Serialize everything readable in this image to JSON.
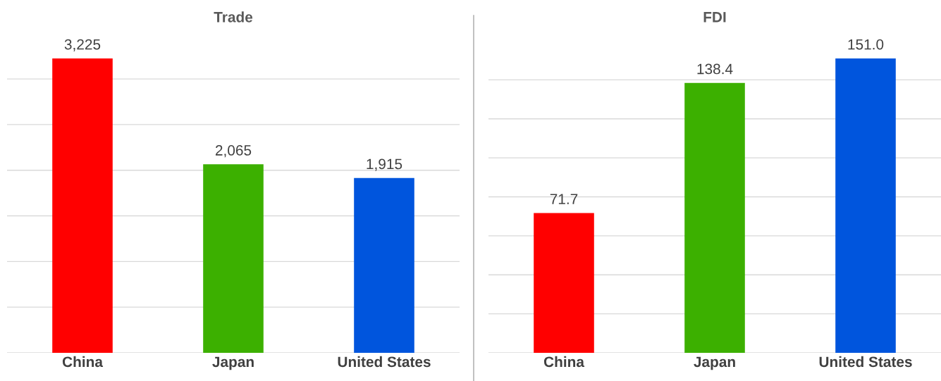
{
  "chart_data": [
    {
      "type": "bar",
      "title": "Trade",
      "categories": [
        "China",
        "Japan",
        "United States"
      ],
      "series": [
        {
          "values": [
            3225,
            2065,
            1915
          ],
          "colors": [
            "#ff0000",
            "#3cb000",
            "#0055dd"
          ],
          "value_labels": [
            "3,225",
            "2,065",
            "1,915"
          ]
        }
      ],
      "grid": "y",
      "tick_labels": "x"
    },
    {
      "type": "bar",
      "title": "FDI",
      "categories": [
        "China",
        "Japan",
        "United States"
      ],
      "series": [
        {
          "values": [
            71.7,
            138.4,
            151.0
          ],
          "colors": [
            "#ff0000",
            "#3cb000",
            "#0055dd"
          ],
          "value_labels": [
            "71.7",
            "138.4",
            "151.0"
          ]
        }
      ],
      "grid": "y",
      "tick_labels": "x"
    }
  ]
}
